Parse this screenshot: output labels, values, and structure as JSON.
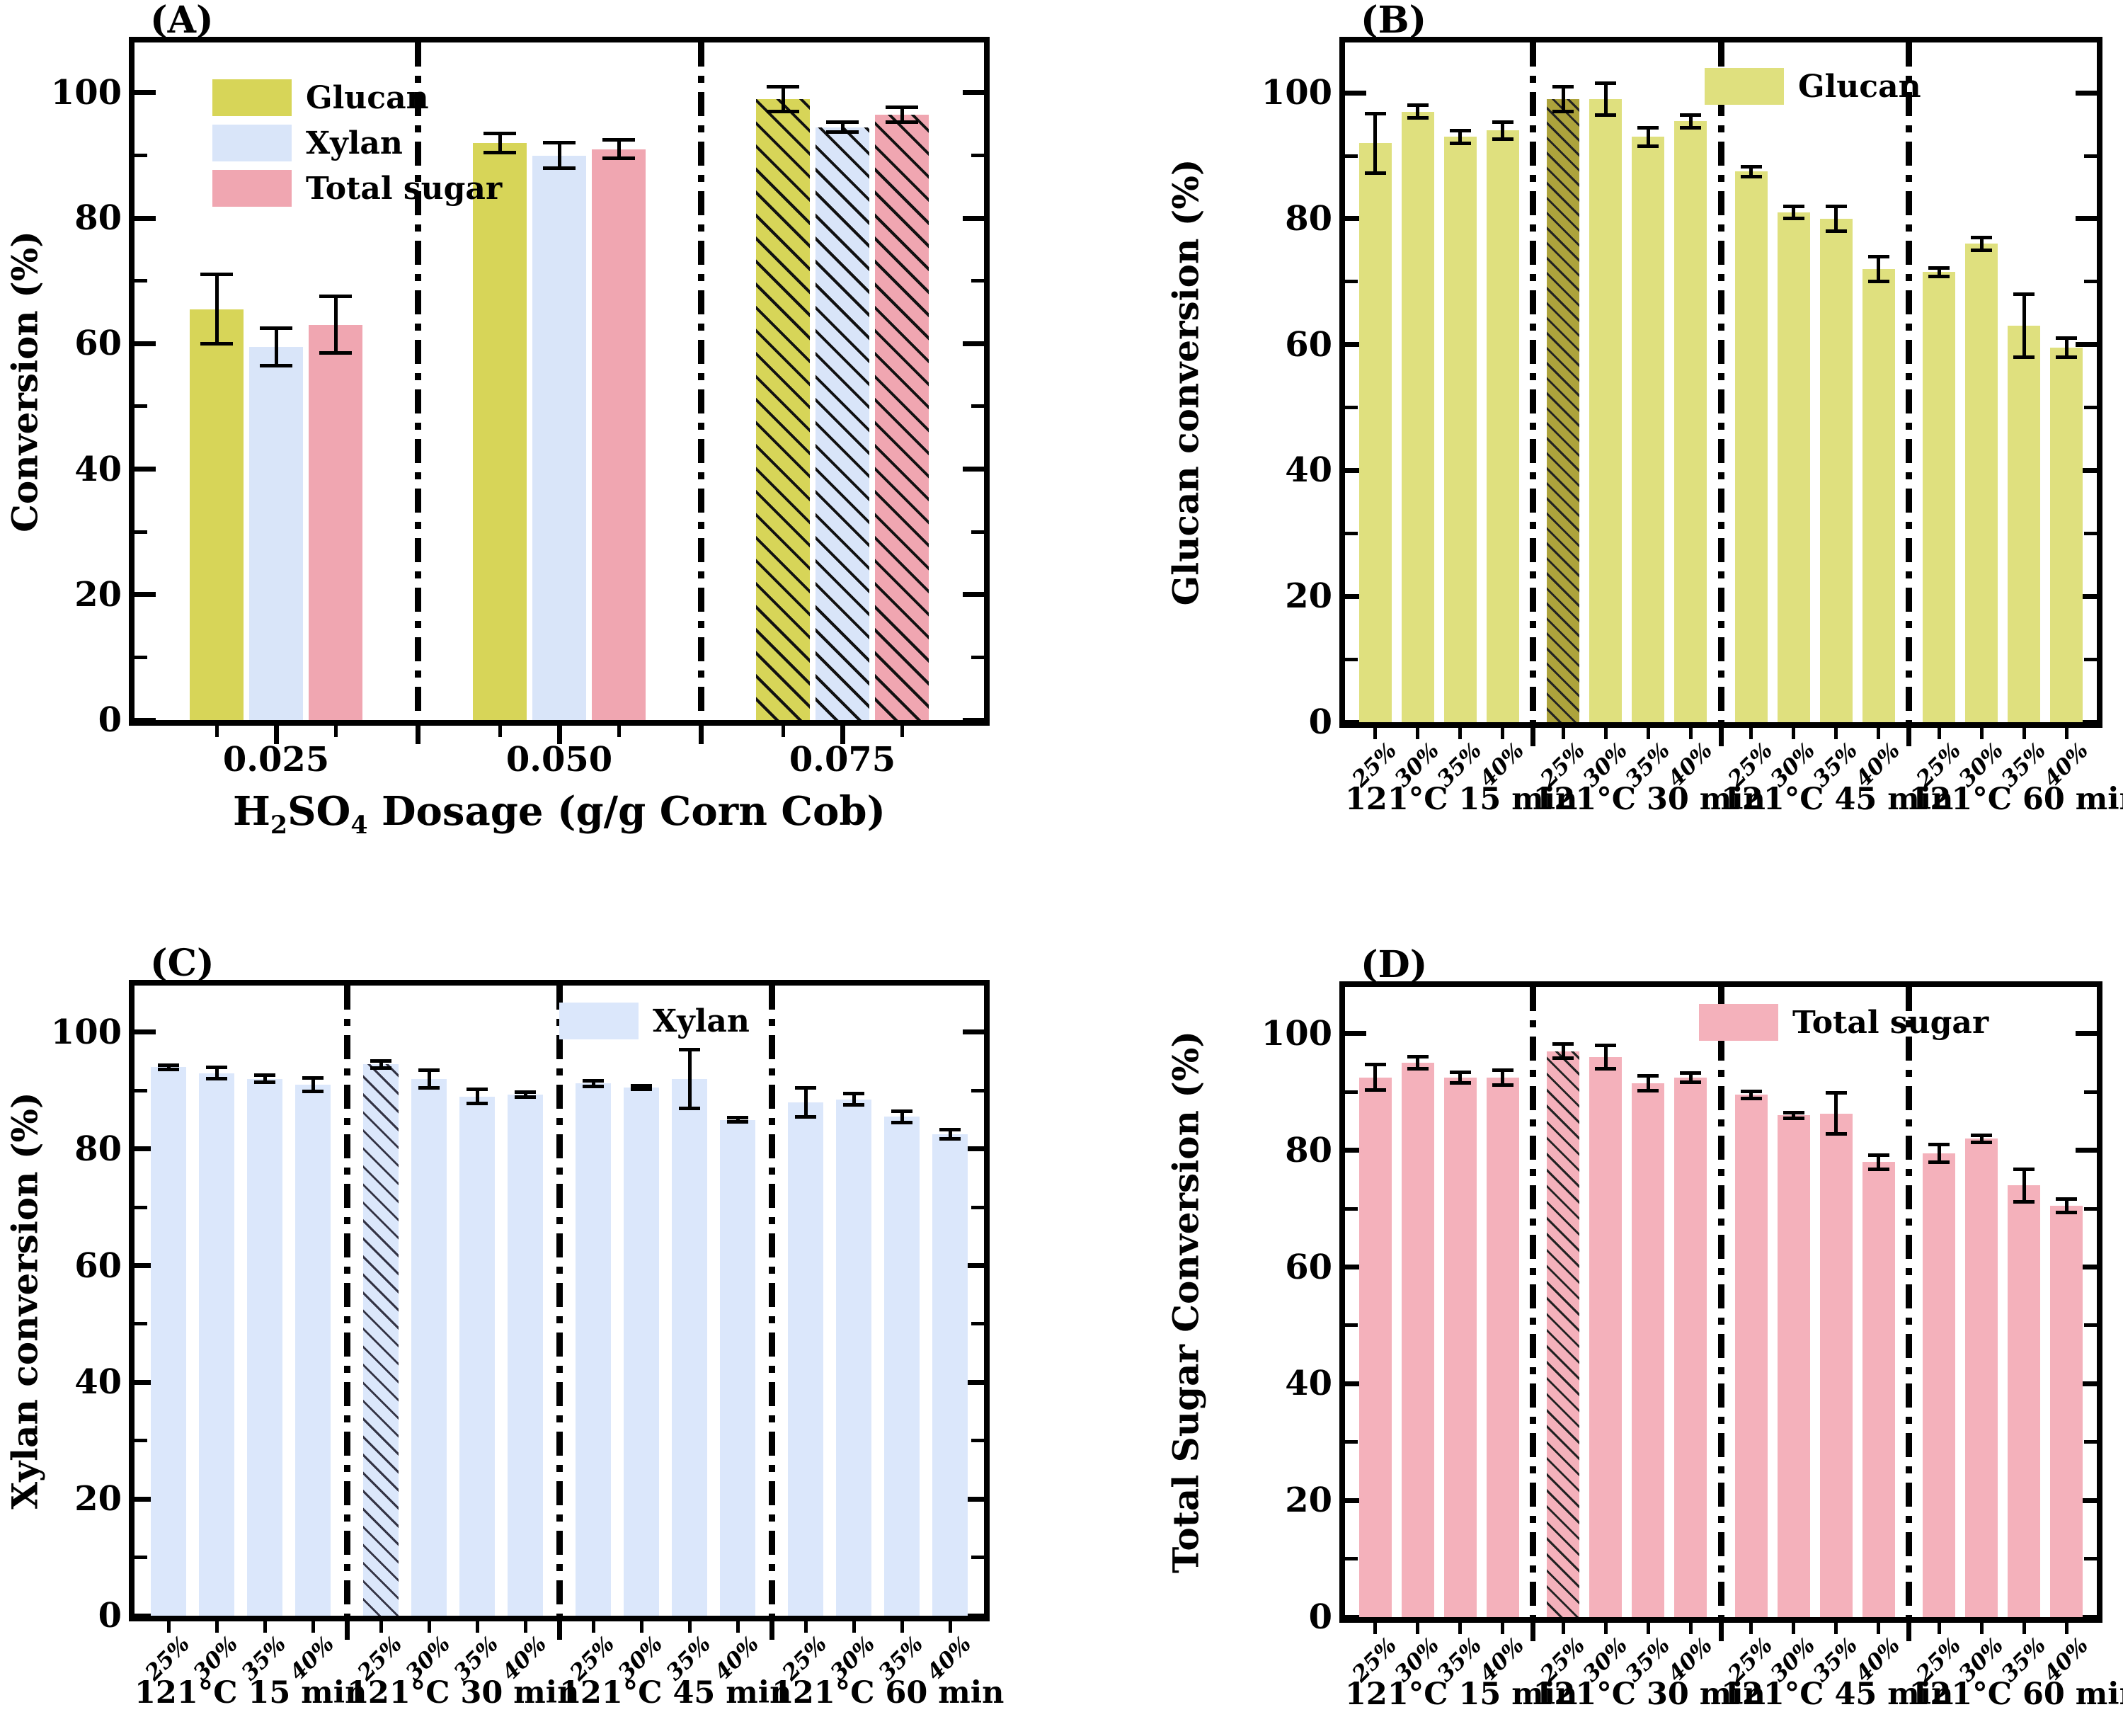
{
  "figure": {
    "background": "#ffffff",
    "description_visible_panels": [
      "(A)",
      "(B)",
      "(C)",
      "(D)"
    ]
  },
  "chart_data": [
    {
      "type": "bar",
      "panel_label": "(A)",
      "ylabel": "Conversion (%)",
      "xlabel": "H2SO4 Dosage (g/g Corn Cob)",
      "xlabel_parts": {
        "p1": "H",
        "s1": "2",
        "p2": "SO",
        "s2": "4",
        "p3": " Dosage (g/g Corn Cob)"
      },
      "categories": [
        "0.025",
        "0.050",
        "0.075"
      ],
      "series": [
        {
          "name": "Glucan",
          "color": "#d7d558",
          "values": [
            65.5,
            92.0,
            99.0
          ],
          "errors": [
            5.5,
            1.5,
            2.0
          ]
        },
        {
          "name": "Xylan",
          "color": "#d9e5f9",
          "values": [
            59.5,
            90.0,
            94.5
          ],
          "errors": [
            3.0,
            2.0,
            0.8
          ]
        },
        {
          "name": "Total sugar",
          "color": "#f0a6b1",
          "values": [
            63.0,
            91.0,
            96.5
          ],
          "errors": [
            4.5,
            1.5,
            1.2
          ]
        }
      ],
      "hatched_categories": [
        "0.075"
      ],
      "ylim": [
        0,
        110
      ],
      "yticks": [
        0,
        20,
        40,
        60,
        80,
        100
      ],
      "minor_yticks": [
        10,
        30,
        50,
        70,
        90
      ],
      "legend_position": "upper-left",
      "grid": false
    },
    {
      "type": "bar",
      "panel_label": "(B)",
      "ylabel": "Glucan conversion (%)",
      "legend_label": "Glucan",
      "color": "#dfe07e",
      "hatch_color": "#ada33c",
      "bar_labels": [
        "25%",
        "30%",
        "35%",
        "40%"
      ],
      "groups": [
        {
          "label": "121°C 15 min",
          "values": [
            92.0,
            97.0,
            93.0,
            94.0
          ],
          "errors": [
            4.7,
            1.0,
            1.0,
            1.3
          ]
        },
        {
          "label": "121°C 30 min",
          "values": [
            99.0,
            99.0,
            93.0,
            95.5
          ],
          "errors": [
            2.0,
            2.5,
            1.5,
            1.0
          ],
          "hatched_index": 0
        },
        {
          "label": "121°C 45 min",
          "values": [
            87.5,
            81.0,
            80.0,
            72.0
          ],
          "errors": [
            0.8,
            1.0,
            2.0,
            2.0
          ]
        },
        {
          "label": "121°C 60 min",
          "values": [
            71.5,
            76.0,
            63.0,
            59.5
          ],
          "errors": [
            0.7,
            1.0,
            5.0,
            1.5
          ]
        }
      ],
      "ylim": [
        0,
        110
      ],
      "yticks": [
        0,
        20,
        40,
        60,
        80,
        100
      ],
      "minor_yticks": [
        10,
        30,
        50,
        70,
        90
      ],
      "legend_position": "upper-right",
      "grid": false
    },
    {
      "type": "bar",
      "panel_label": "(C)",
      "ylabel": "Xylan conversion (%)",
      "legend_label": "Xylan",
      "color": "#dbe7fb",
      "hatch_color": "#dbe7fb",
      "bar_labels": [
        "25%",
        "30%",
        "35%",
        "40%"
      ],
      "groups": [
        {
          "label": "121°C 15 min",
          "values": [
            94.0,
            93.0,
            92.0,
            91.0
          ],
          "errors": [
            0.4,
            1.0,
            0.6,
            1.2
          ]
        },
        {
          "label": "121°C 30 min",
          "values": [
            94.5,
            92.0,
            89.0,
            89.3
          ],
          "errors": [
            0.6,
            1.5,
            1.2,
            0.4
          ],
          "hatched_index": 0
        },
        {
          "label": "121°C 45 min",
          "values": [
            91.2,
            90.5,
            92.0,
            85.0
          ],
          "errors": [
            0.5,
            0.3,
            5.0,
            0.4
          ]
        },
        {
          "label": "121°C 60 min",
          "values": [
            88.0,
            88.5,
            85.5,
            82.5
          ],
          "errors": [
            2.5,
            1.0,
            1.0,
            0.8
          ]
        }
      ],
      "ylim": [
        0,
        110
      ],
      "yticks": [
        0,
        20,
        40,
        60,
        80,
        100
      ],
      "minor_yticks": [
        10,
        30,
        50,
        70,
        90
      ],
      "legend_position": "upper-right",
      "grid": false
    },
    {
      "type": "bar",
      "panel_label": "(D)",
      "ylabel": "Total Sugar Conversion (%)",
      "legend_label": "Total sugar",
      "color": "#f4b1bb",
      "hatch_color": "#f4b1bb",
      "bar_labels": [
        "25%",
        "30%",
        "35%",
        "40%"
      ],
      "groups": [
        {
          "label": "121°C 15 min",
          "values": [
            92.5,
            95.0,
            92.5,
            92.5
          ],
          "errors": [
            2.2,
            1.0,
            0.9,
            1.3
          ]
        },
        {
          "label": "121°C 30 min",
          "values": [
            97.0,
            96.0,
            91.5,
            92.5
          ],
          "errors": [
            1.2,
            2.0,
            1.3,
            0.8
          ],
          "hatched_index": 0
        },
        {
          "label": "121°C 45 min",
          "values": [
            89.5,
            86.0,
            86.3,
            78.0
          ],
          "errors": [
            0.6,
            0.5,
            3.5,
            1.2
          ]
        },
        {
          "label": "121°C 60 min",
          "values": [
            79.5,
            82.0,
            74.0,
            70.5
          ],
          "errors": [
            1.5,
            0.6,
            2.8,
            1.2
          ]
        }
      ],
      "ylim": [
        0,
        110
      ],
      "yticks": [
        0,
        20,
        40,
        60,
        80,
        100
      ],
      "minor_yticks": [
        10,
        30,
        50,
        70,
        90
      ],
      "legend_position": "upper-right",
      "grid": false
    }
  ]
}
